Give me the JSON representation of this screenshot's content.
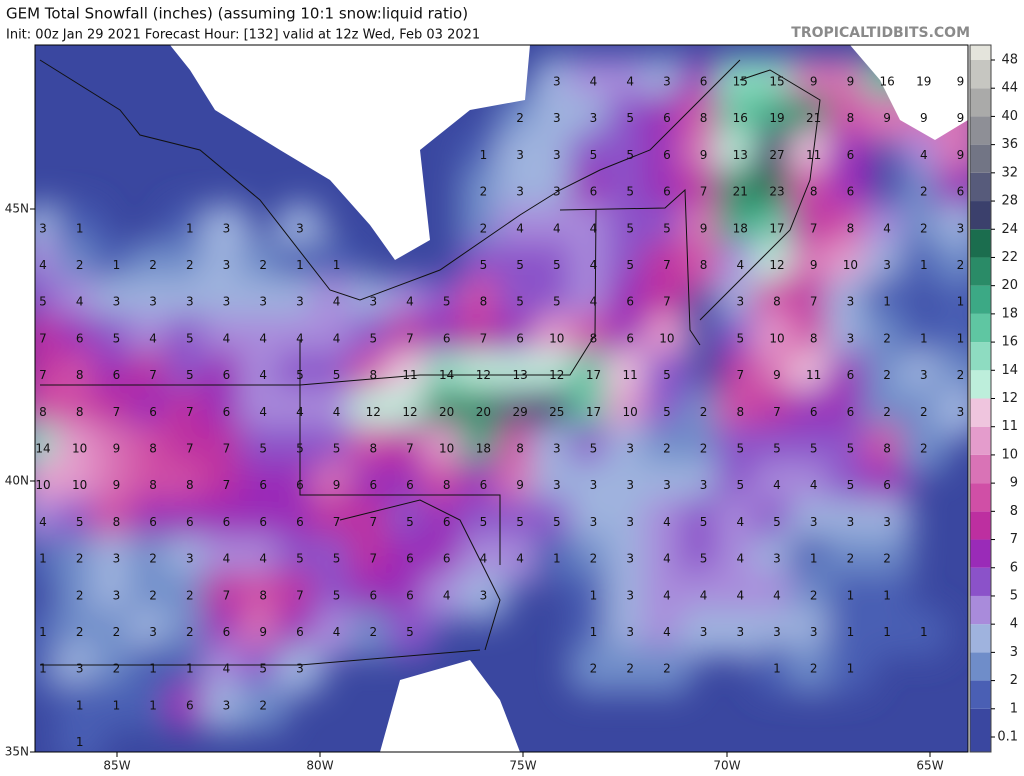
{
  "header": {
    "title": "GEM Total Snowfall (inches) (assuming 10:1 snow:liquid ratio)",
    "subtitle": "Init: 00z Jan 29 2021   Forecast Hour: [132]   valid at 12z Wed, Feb 03 2021",
    "site": "TROPICALTIDBITS.COM"
  },
  "axes": {
    "lon": [
      "85W",
      "80W",
      "75W",
      "70W",
      "65W"
    ],
    "lat": [
      "45N",
      "40N",
      "35N"
    ]
  },
  "colorbar": {
    "ticks": [
      0.1,
      1,
      2,
      3,
      4,
      5,
      6,
      7,
      8,
      9,
      10,
      11,
      12,
      14,
      16,
      18,
      20,
      22,
      24,
      28,
      32,
      36,
      40,
      44,
      48
    ],
    "colors": [
      "#3a47a0",
      "#4a5fb4",
      "#6f8dc9",
      "#9fb3de",
      "#a98bdb",
      "#8b52c9",
      "#9a2bb8",
      "#bd2fa0",
      "#d04fa6",
      "#d973b6",
      "#e49ccc",
      "#efc5de",
      "#bdeedb",
      "#8edcc1",
      "#5fc6a2",
      "#3ca985",
      "#2a8b67",
      "#1b6d4e",
      "#3b406c",
      "#575b7b",
      "#727585",
      "#8e8f96",
      "#aaaaa9",
      "#c6c6c1",
      "#e4e4dc"
    ]
  },
  "grid": {
    "rows": [
      [
        null,
        null,
        null,
        null,
        null,
        null,
        null,
        null,
        null,
        null,
        null,
        null,
        null,
        null,
        3,
        4,
        4,
        3,
        6,
        15,
        15,
        9,
        9,
        16,
        19,
        9
      ],
      [
        null,
        null,
        null,
        null,
        null,
        null,
        null,
        null,
        null,
        null,
        null,
        null,
        null,
        2,
        3,
        3,
        5,
        6,
        8,
        16,
        19,
        21,
        8,
        9,
        9,
        9
      ],
      [
        null,
        null,
        null,
        null,
        null,
        null,
        null,
        null,
        null,
        null,
        null,
        null,
        1,
        3,
        3,
        5,
        5,
        6,
        9,
        13,
        27,
        11,
        6,
        null,
        4,
        9
      ],
      [
        null,
        null,
        null,
        null,
        null,
        null,
        null,
        null,
        null,
        null,
        null,
        null,
        2,
        3,
        3,
        6,
        5,
        6,
        7,
        21,
        23,
        8,
        6,
        null,
        2,
        6
      ],
      [
        3,
        1,
        null,
        null,
        1,
        3,
        null,
        3,
        null,
        null,
        null,
        null,
        2,
        4,
        4,
        4,
        5,
        5,
        9,
        18,
        17,
        7,
        8,
        4,
        2,
        3
      ],
      [
        4,
        2,
        1,
        2,
        2,
        3,
        2,
        1,
        1,
        null,
        null,
        null,
        5,
        5,
        5,
        4,
        5,
        7,
        8,
        4,
        12,
        9,
        10,
        3,
        1,
        2
      ],
      [
        5,
        4,
        3,
        3,
        3,
        3,
        3,
        3,
        4,
        3,
        4,
        5,
        8,
        5,
        5,
        4,
        6,
        7,
        null,
        3,
        8,
        7,
        3,
        1,
        null,
        1
      ],
      [
        7,
        6,
        5,
        4,
        5,
        4,
        4,
        4,
        4,
        5,
        7,
        6,
        7,
        6,
        10,
        8,
        6,
        10,
        null,
        5,
        10,
        8,
        3,
        2,
        1,
        1
      ],
      [
        7,
        8,
        6,
        7,
        5,
        6,
        4,
        5,
        5,
        8,
        11,
        14,
        12,
        13,
        12,
        17,
        11,
        5,
        null,
        7,
        9,
        11,
        6,
        2,
        3,
        2
      ],
      [
        8,
        8,
        7,
        6,
        7,
        6,
        4,
        4,
        4,
        12,
        12,
        20,
        20,
        29,
        25,
        17,
        10,
        5,
        2,
        8,
        7,
        6,
        6,
        2,
        2,
        3
      ],
      [
        14,
        10,
        9,
        8,
        7,
        7,
        5,
        5,
        5,
        8,
        7,
        10,
        18,
        8,
        3,
        5,
        3,
        2,
        2,
        5,
        5,
        5,
        5,
        8,
        2,
        null
      ],
      [
        10,
        10,
        9,
        8,
        8,
        7,
        6,
        6,
        9,
        6,
        6,
        8,
        6,
        9,
        3,
        3,
        3,
        3,
        3,
        5,
        4,
        4,
        5,
        6,
        null,
        null
      ],
      [
        4,
        5,
        8,
        6,
        6,
        6,
        6,
        6,
        7,
        7,
        5,
        6,
        5,
        5,
        5,
        3,
        3,
        4,
        5,
        4,
        5,
        3,
        3,
        3,
        null,
        null
      ],
      [
        1,
        2,
        3,
        2,
        3,
        4,
        4,
        5,
        5,
        7,
        6,
        6,
        4,
        4,
        1,
        2,
        3,
        4,
        5,
        4,
        3,
        1,
        2,
        2,
        null,
        null
      ],
      [
        null,
        2,
        3,
        2,
        2,
        7,
        8,
        7,
        5,
        6,
        6,
        4,
        3,
        null,
        null,
        1,
        3,
        4,
        4,
        4,
        4,
        2,
        1,
        1,
        null,
        null
      ],
      [
        1,
        2,
        2,
        3,
        2,
        6,
        9,
        6,
        4,
        2,
        5,
        null,
        null,
        null,
        null,
        1,
        3,
        4,
        3,
        3,
        3,
        3,
        1,
        1,
        1,
        null
      ],
      [
        1,
        3,
        2,
        1,
        1,
        4,
        5,
        3,
        null,
        null,
        null,
        null,
        null,
        null,
        null,
        2,
        2,
        2,
        null,
        null,
        1,
        2,
        1,
        null,
        null,
        null
      ],
      [
        null,
        1,
        1,
        1,
        6,
        3,
        2,
        null,
        null,
        null,
        null,
        null,
        null,
        null,
        null,
        null,
        null,
        null,
        null,
        null,
        null,
        null,
        null,
        null,
        null,
        null
      ],
      [
        null,
        1,
        null,
        null,
        null,
        null,
        null,
        null,
        null,
        null,
        null,
        null,
        null,
        null,
        null,
        null,
        null,
        null,
        null,
        null,
        null,
        null,
        null,
        null,
        null,
        null
      ]
    ]
  }
}
